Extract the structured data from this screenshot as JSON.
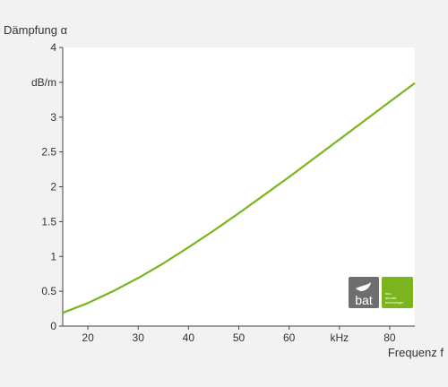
{
  "chart_data": {
    "type": "line",
    "ylabel": "Dämpfung α",
    "yunit": "dB/m",
    "xlabel": "Frequenz f",
    "xunit": "kHz",
    "xlim": [
      15,
      85
    ],
    "ylim": [
      0,
      4
    ],
    "x_ticks": [
      "20",
      "30",
      "40",
      "50",
      "60",
      "kHz",
      "80"
    ],
    "y_ticks": [
      "0",
      "0.5",
      "1",
      "1.5",
      "2",
      "2.5",
      "3",
      "dB/m",
      "4"
    ],
    "grid": false,
    "series": [
      {
        "color": "#7ab51d",
        "x": [
          15,
          20,
          25,
          30,
          35,
          40,
          45,
          50,
          55,
          60,
          65,
          70,
          75,
          80,
          85
        ],
        "y": [
          0.19,
          0.33,
          0.5,
          0.69,
          0.9,
          1.13,
          1.37,
          1.62,
          1.88,
          2.14,
          2.41,
          2.68,
          2.95,
          3.22,
          3.49
        ]
      }
    ]
  },
  "logo": {
    "wordmark": "bat",
    "tagline": [
      "bau",
      "akustik",
      "technologie"
    ],
    "gray": "#6d6e70",
    "green": "#7ab51d"
  },
  "colors": {
    "background": "#f2f2f2",
    "plot": "#ffffff",
    "axis": "#444444",
    "text": "#333333"
  }
}
